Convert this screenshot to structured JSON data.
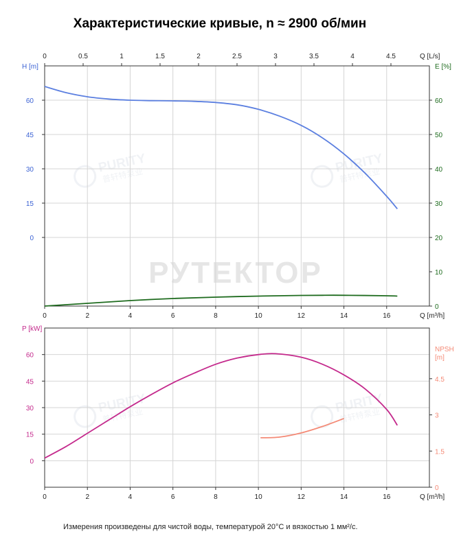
{
  "title": "Характеристические кривые, n ≈ 2900 об/мин",
  "footnote": "Измерения произведены для чистой воды, температурой 20°C и вязкостью 1 мм²/с.",
  "watermarks": {
    "main": "РУТЕКТОР",
    "logo_latin": "PURITY",
    "logo_cn": "普轩特泵业"
  },
  "colors": {
    "head": "#5b7fe0",
    "efficiency": "#1e6b1e",
    "power": "#c4298c",
    "npsh": "#f48a76",
    "head_axis_text": "#3b62d4",
    "eff_axis_text": "#1e6b1e",
    "power_axis_text": "#c4298c",
    "npsh_axis_text": "#f48a76"
  },
  "chart_data": [
    {
      "type": "line",
      "panel": "top",
      "x_unit_bottom": "Q [m³/h]",
      "x_unit_top": "Q [L/s]",
      "xlim": [
        0,
        18
      ],
      "x_ticks": [
        0,
        2,
        4,
        6,
        8,
        10,
        12,
        14,
        16
      ],
      "x_top_ticks": [
        0,
        0.5,
        1,
        1.5,
        2,
        2.5,
        3,
        3.5,
        4,
        4.5
      ],
      "y_left_label": "H [m]",
      "y_left_ticks": [
        0,
        15,
        30,
        45,
        60
      ],
      "y_left_range": [
        -30,
        75
      ],
      "y_right_label": "E [%]",
      "y_right_ticks": [
        0,
        10,
        20,
        30,
        40,
        50,
        60
      ],
      "y_right_range": [
        0,
        70
      ],
      "grid": true,
      "series": [
        {
          "axis": "left",
          "color_key": "head",
          "x": [
            0,
            1,
            2,
            3,
            4,
            5,
            6,
            7,
            8,
            9,
            10,
            11,
            12,
            13,
            14,
            15,
            16,
            16.5
          ],
          "values": [
            66,
            63.3,
            61.5,
            60.5,
            60,
            59.8,
            59.7,
            59.5,
            59,
            58,
            56,
            53,
            49,
            43.5,
            36.5,
            28,
            18,
            12.5
          ]
        },
        {
          "axis": "right",
          "color_key": "efficiency",
          "x": [
            0,
            2,
            4,
            6,
            8,
            10,
            12,
            13,
            14,
            16,
            16.5
          ],
          "values": [
            0,
            0.8,
            1.6,
            2.2,
            2.6,
            2.9,
            3.1,
            3.15,
            3.15,
            3.0,
            2.9
          ]
        }
      ]
    },
    {
      "type": "line",
      "panel": "bottom",
      "x_unit_bottom": "Q [m³/h]",
      "xlim": [
        0,
        18
      ],
      "x_ticks": [
        0,
        2,
        4,
        6,
        8,
        10,
        12,
        14,
        16
      ],
      "y_left_label": "P [kW]",
      "y_left_ticks": [
        0,
        15,
        30,
        45,
        60
      ],
      "y_left_range": [
        -15,
        75
      ],
      "y_right_label": "NPSH [m]",
      "y_right_ticks": [
        0,
        1.5,
        3,
        4.5
      ],
      "y_right_range": [
        0,
        6.6
      ],
      "grid": true,
      "series": [
        {
          "axis": "left",
          "color_key": "power",
          "x": [
            0,
            1,
            2,
            3,
            4,
            5,
            6,
            7,
            8,
            9,
            10,
            10.8,
            12,
            13,
            14,
            15,
            16,
            16.5
          ],
          "values": [
            1.5,
            8,
            15.5,
            23,
            30.5,
            37.5,
            44,
            49.5,
            54.5,
            58,
            60,
            60.5,
            58.5,
            54.5,
            48.5,
            40.5,
            29,
            20
          ]
        },
        {
          "axis": "right",
          "color_key": "npsh",
          "x": [
            10.1,
            11,
            12,
            13,
            14
          ],
          "values": [
            2.05,
            2.08,
            2.25,
            2.52,
            2.85
          ]
        }
      ]
    }
  ]
}
